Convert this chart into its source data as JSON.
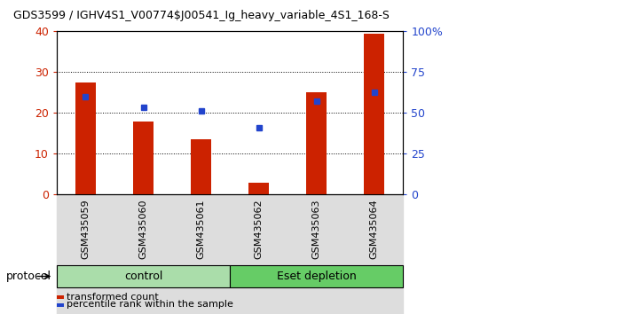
{
  "title": "GDS3599 / IGHV4S1_V00774$J00541_Ig_heavy_variable_4S1_168-S",
  "samples": [
    "GSM435059",
    "GSM435060",
    "GSM435061",
    "GSM435062",
    "GSM435063",
    "GSM435064"
  ],
  "red_values": [
    27.5,
    18.0,
    13.5,
    3.0,
    25.2,
    39.5
  ],
  "blue_right_axis": [
    60.0,
    53.75,
    51.25,
    41.25,
    57.5,
    62.5
  ],
  "red_color": "#cc2200",
  "blue_color": "#2244cc",
  "ylim_left": [
    0,
    40
  ],
  "ylim_right": [
    0,
    100
  ],
  "yticks_left": [
    0,
    10,
    20,
    30,
    40
  ],
  "yticks_right": [
    0,
    25,
    50,
    75,
    100
  ],
  "ytick_labels_left": [
    "0",
    "10",
    "20",
    "30",
    "40"
  ],
  "ytick_labels_right": [
    "0",
    "25",
    "50",
    "75",
    "100%"
  ],
  "groups": [
    {
      "label": "control",
      "samples": [
        "GSM435059",
        "GSM435060",
        "GSM435061"
      ],
      "color": "#aaddaa"
    },
    {
      "label": "Eset depletion",
      "samples": [
        "GSM435062",
        "GSM435063",
        "GSM435064"
      ],
      "color": "#66cc66"
    }
  ],
  "group_row_label": "protocol",
  "legend_items": [
    {
      "color": "#cc2200",
      "label": "transformed count"
    },
    {
      "color": "#2244cc",
      "label": "percentile rank within the sample"
    }
  ],
  "bar_width": 0.35,
  "background_color": "#ffffff",
  "plot_bg_color": "#ffffff",
  "tick_bg_color": "#dddddd"
}
